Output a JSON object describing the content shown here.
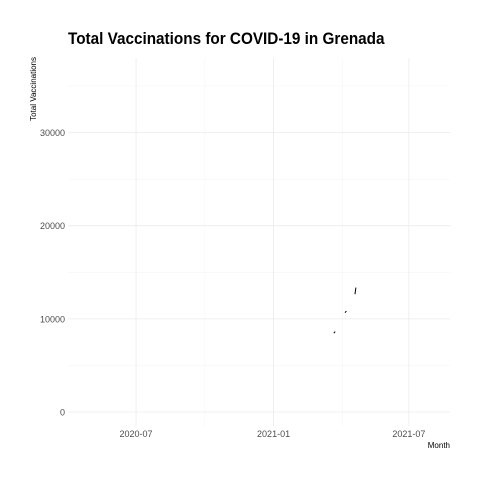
{
  "chart_data": {
    "type": "line",
    "title": "Total Vaccinations for COVID-19 in Grenada",
    "xlabel": "Month",
    "ylabel": "Total Vaccinations",
    "x_ticks": [
      "2020-07",
      "2021-01",
      "2021-07"
    ],
    "y_ticks": [
      0,
      10000,
      20000,
      30000
    ],
    "xlim": [
      "2020-04-01",
      "2021-08-25"
    ],
    "ylim": [
      -1500,
      38000
    ],
    "grid": true,
    "legend": "none",
    "series": [
      {
        "color": "#000000",
        "points": [
          {
            "x": "2021-03-23",
            "y": 8500
          },
          {
            "x": "2021-03-24",
            "y": 8600
          },
          {
            "x": "2021-04-07",
            "y": 10700
          },
          {
            "x": "2021-04-08",
            "y": 10800
          },
          {
            "x": "2021-04-20",
            "y": 12700
          },
          {
            "x": "2021-04-21",
            "y": 13300
          }
        ]
      }
    ]
  }
}
